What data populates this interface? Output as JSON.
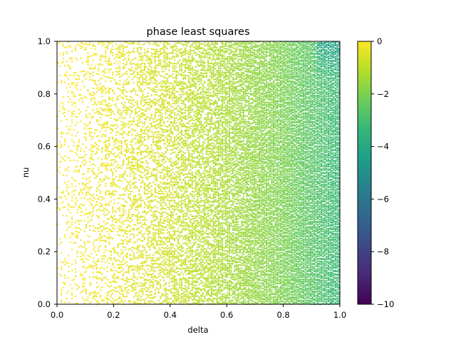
{
  "chart_data": {
    "type": "scatter",
    "title": "phase least squares",
    "xlabel": "delta",
    "ylabel": "nu",
    "xlim": [
      0.0,
      1.0
    ],
    "ylim": [
      0.0,
      1.0
    ],
    "xticks": [
      "0.0",
      "0.2",
      "0.4",
      "0.6",
      "0.8",
      "1.0"
    ],
    "yticks": [
      "0.0",
      "0.2",
      "0.4",
      "0.6",
      "0.8",
      "1.0"
    ],
    "colorbar": {
      "colormap": "viridis",
      "range": [
        -10,
        0
      ],
      "ticks": [
        "0",
        "−2",
        "−4",
        "−6",
        "−8",
        "−10"
      ]
    },
    "grid": false,
    "colors": {
      "viridis_stops": [
        "#440154",
        "#482878",
        "#3e4989",
        "#31688e",
        "#26828e",
        "#1f9e89",
        "#35b779",
        "#6ece58",
        "#b5de2b",
        "#fde725"
      ]
    },
    "approximate_value_trend": [
      {
        "delta": 0.0,
        "value": 0.0
      },
      {
        "delta": 0.2,
        "value": -0.3
      },
      {
        "delta": 0.4,
        "value": -0.7
      },
      {
        "delta": 0.6,
        "value": -1.3
      },
      {
        "delta": 0.8,
        "value": -2.0
      },
      {
        "delta": 1.0,
        "value": -3.3
      }
    ]
  }
}
